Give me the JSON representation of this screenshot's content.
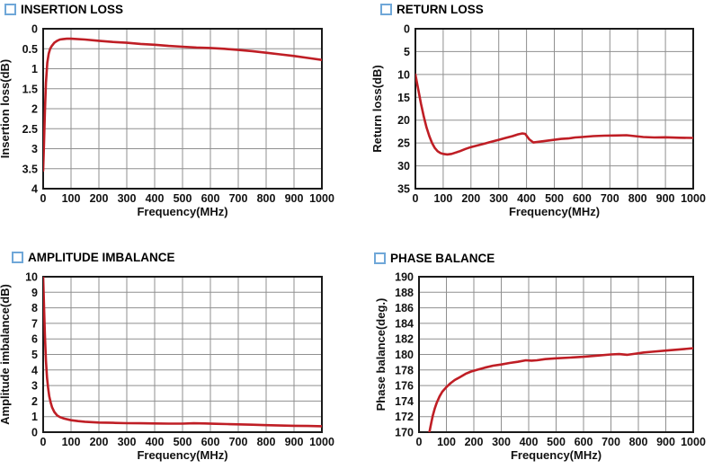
{
  "colors": {
    "curve": "#bf1e25",
    "grid": "#8f8f8f",
    "axis": "#1a1a1a",
    "title_square_border": "#6fa7d8",
    "title_text": "#000000",
    "background": "#ffffff"
  },
  "chart_data": [
    {
      "key": "insertion-loss",
      "type": "line",
      "title": "INSERTION LOSS",
      "xlabel": "Frequency(MHz)",
      "ylabel": "Insertion loss(dB)",
      "xlim": [
        0,
        1000
      ],
      "xticks": [
        0,
        100,
        200,
        300,
        400,
        500,
        600,
        700,
        800,
        900,
        1000
      ],
      "ylim": [
        0,
        4
      ],
      "yticks": [
        0,
        0.5,
        1,
        1.5,
        2,
        2.5,
        3,
        3.5,
        4
      ],
      "y_inverted": true,
      "grid": true,
      "legend": "none",
      "series": [
        {
          "name": "insertion loss",
          "points": [
            [
              0,
              3.55
            ],
            [
              3,
              2.9
            ],
            [
              6,
              2.1
            ],
            [
              10,
              1.35
            ],
            [
              15,
              0.85
            ],
            [
              20,
              0.62
            ],
            [
              25,
              0.5
            ],
            [
              30,
              0.44
            ],
            [
              40,
              0.35
            ],
            [
              50,
              0.3
            ],
            [
              60,
              0.27
            ],
            [
              70,
              0.26
            ],
            [
              85,
              0.25
            ],
            [
              100,
              0.25
            ],
            [
              150,
              0.27
            ],
            [
              200,
              0.3
            ],
            [
              250,
              0.33
            ],
            [
              300,
              0.35
            ],
            [
              350,
              0.38
            ],
            [
              400,
              0.4
            ],
            [
              450,
              0.43
            ],
            [
              500,
              0.45
            ],
            [
              550,
              0.47
            ],
            [
              600,
              0.48
            ],
            [
              650,
              0.5
            ],
            [
              700,
              0.53
            ],
            [
              750,
              0.56
            ],
            [
              800,
              0.6
            ],
            [
              850,
              0.64
            ],
            [
              900,
              0.68
            ],
            [
              950,
              0.73
            ],
            [
              1000,
              0.78
            ]
          ]
        }
      ]
    },
    {
      "key": "return-loss",
      "type": "line",
      "title": "RETURN LOSS",
      "xlabel": "Frequency(MHz)",
      "ylabel": "Return loss(dB)",
      "xlim": [
        0,
        1000
      ],
      "xticks": [
        0,
        100,
        200,
        300,
        400,
        500,
        600,
        700,
        800,
        900,
        1000
      ],
      "ylim": [
        0,
        35
      ],
      "yticks": [
        0,
        5,
        10,
        15,
        20,
        25,
        30,
        35
      ],
      "y_inverted": true,
      "grid": true,
      "legend": "none",
      "series": [
        {
          "name": "return loss",
          "points": [
            [
              0,
              10
            ],
            [
              10,
              13.2
            ],
            [
              20,
              16.4
            ],
            [
              30,
              19.2
            ],
            [
              40,
              21.6
            ],
            [
              50,
              23.5
            ],
            [
              60,
              25.0
            ],
            [
              70,
              26.1
            ],
            [
              80,
              26.8
            ],
            [
              90,
              27.2
            ],
            [
              100,
              27.4
            ],
            [
              115,
              27.5
            ],
            [
              130,
              27.4
            ],
            [
              145,
              27.1
            ],
            [
              160,
              26.8
            ],
            [
              180,
              26.3
            ],
            [
              200,
              25.9
            ],
            [
              225,
              25.5
            ],
            [
              250,
              25.1
            ],
            [
              275,
              24.7
            ],
            [
              300,
              24.3
            ],
            [
              325,
              23.9
            ],
            [
              350,
              23.5
            ],
            [
              370,
              23.1
            ],
            [
              385,
              22.9
            ],
            [
              395,
              23.0
            ],
            [
              410,
              24.2
            ],
            [
              425,
              24.9
            ],
            [
              450,
              24.7
            ],
            [
              475,
              24.5
            ],
            [
              500,
              24.3
            ],
            [
              525,
              24.1
            ],
            [
              550,
              24.0
            ],
            [
              575,
              23.8
            ],
            [
              600,
              23.7
            ],
            [
              640,
              23.5
            ],
            [
              680,
              23.4
            ],
            [
              720,
              23.35
            ],
            [
              760,
              23.3
            ],
            [
              790,
              23.5
            ],
            [
              820,
              23.7
            ],
            [
              860,
              23.8
            ],
            [
              900,
              23.75
            ],
            [
              950,
              23.85
            ],
            [
              1000,
              23.9
            ]
          ]
        }
      ]
    },
    {
      "key": "amplitude-imbalance",
      "type": "line",
      "title": "AMPLITUDE IMBALANCE",
      "xlabel": "Frequency(MHz)",
      "ylabel": "Amplitude imbalance(dB)",
      "xlim": [
        0,
        1000
      ],
      "xticks": [
        0,
        100,
        200,
        300,
        400,
        500,
        600,
        700,
        800,
        900,
        1000
      ],
      "ylim": [
        0,
        10
      ],
      "yticks": [
        0,
        1,
        2,
        3,
        4,
        5,
        6,
        7,
        8,
        9,
        10
      ],
      "y_inverted": false,
      "grid": true,
      "legend": "none",
      "series": [
        {
          "name": "amplitude imbalance",
          "points": [
            [
              0,
              10
            ],
            [
              3,
              8.2
            ],
            [
              6,
              6.3
            ],
            [
              10,
              4.6
            ],
            [
              14,
              3.5
            ],
            [
              18,
              2.8
            ],
            [
              22,
              2.3
            ],
            [
              27,
              1.9
            ],
            [
              32,
              1.6
            ],
            [
              40,
              1.3
            ],
            [
              50,
              1.08
            ],
            [
              60,
              0.97
            ],
            [
              75,
              0.87
            ],
            [
              100,
              0.77
            ],
            [
              125,
              0.71
            ],
            [
              150,
              0.67
            ],
            [
              200,
              0.62
            ],
            [
              250,
              0.6
            ],
            [
              300,
              0.58
            ],
            [
              350,
              0.57
            ],
            [
              400,
              0.56
            ],
            [
              450,
              0.55
            ],
            [
              500,
              0.55
            ],
            [
              540,
              0.57
            ],
            [
              580,
              0.56
            ],
            [
              620,
              0.54
            ],
            [
              660,
              0.52
            ],
            [
              700,
              0.5
            ],
            [
              750,
              0.48
            ],
            [
              800,
              0.45
            ],
            [
              850,
              0.43
            ],
            [
              900,
              0.41
            ],
            [
              950,
              0.4
            ],
            [
              1000,
              0.38
            ]
          ]
        }
      ]
    },
    {
      "key": "phase-balance",
      "type": "line",
      "title": "PHASE BALANCE",
      "xlabel": "Frequency(MHz)",
      "ylabel": "Phase balance(deg.)",
      "xlim": [
        0,
        1000
      ],
      "xticks": [
        0,
        100,
        200,
        300,
        400,
        500,
        600,
        700,
        800,
        900,
        1000
      ],
      "ylim": [
        170,
        190
      ],
      "yticks": [
        170,
        172,
        174,
        176,
        178,
        180,
        182,
        184,
        186,
        188,
        190
      ],
      "y_inverted": false,
      "grid": true,
      "legend": "none",
      "series": [
        {
          "name": "phase balance",
          "points": [
            [
              34,
              168.5
            ],
            [
              38,
              170
            ],
            [
              42,
              170.7
            ],
            [
              46,
              171.4
            ],
            [
              50,
              172.1
            ],
            [
              57,
              173.0
            ],
            [
              65,
              173.8
            ],
            [
              75,
              174.6
            ],
            [
              85,
              175.2
            ],
            [
              100,
              175.8
            ],
            [
              115,
              176.3
            ],
            [
              130,
              176.7
            ],
            [
              150,
              177.1
            ],
            [
              170,
              177.5
            ],
            [
              190,
              177.8
            ],
            [
              210,
              178.0
            ],
            [
              240,
              178.3
            ],
            [
              270,
              178.55
            ],
            [
              300,
              178.7
            ],
            [
              330,
              178.9
            ],
            [
              360,
              179.05
            ],
            [
              390,
              179.25
            ],
            [
              410,
              179.2
            ],
            [
              430,
              179.25
            ],
            [
              460,
              179.4
            ],
            [
              500,
              179.5
            ],
            [
              550,
              179.6
            ],
            [
              600,
              179.7
            ],
            [
              650,
              179.85
            ],
            [
              700,
              180.0
            ],
            [
              730,
              180.05
            ],
            [
              760,
              179.95
            ],
            [
              790,
              180.1
            ],
            [
              820,
              180.25
            ],
            [
              850,
              180.35
            ],
            [
              900,
              180.5
            ],
            [
              950,
              180.65
            ],
            [
              1000,
              180.8
            ]
          ]
        }
      ]
    }
  ]
}
